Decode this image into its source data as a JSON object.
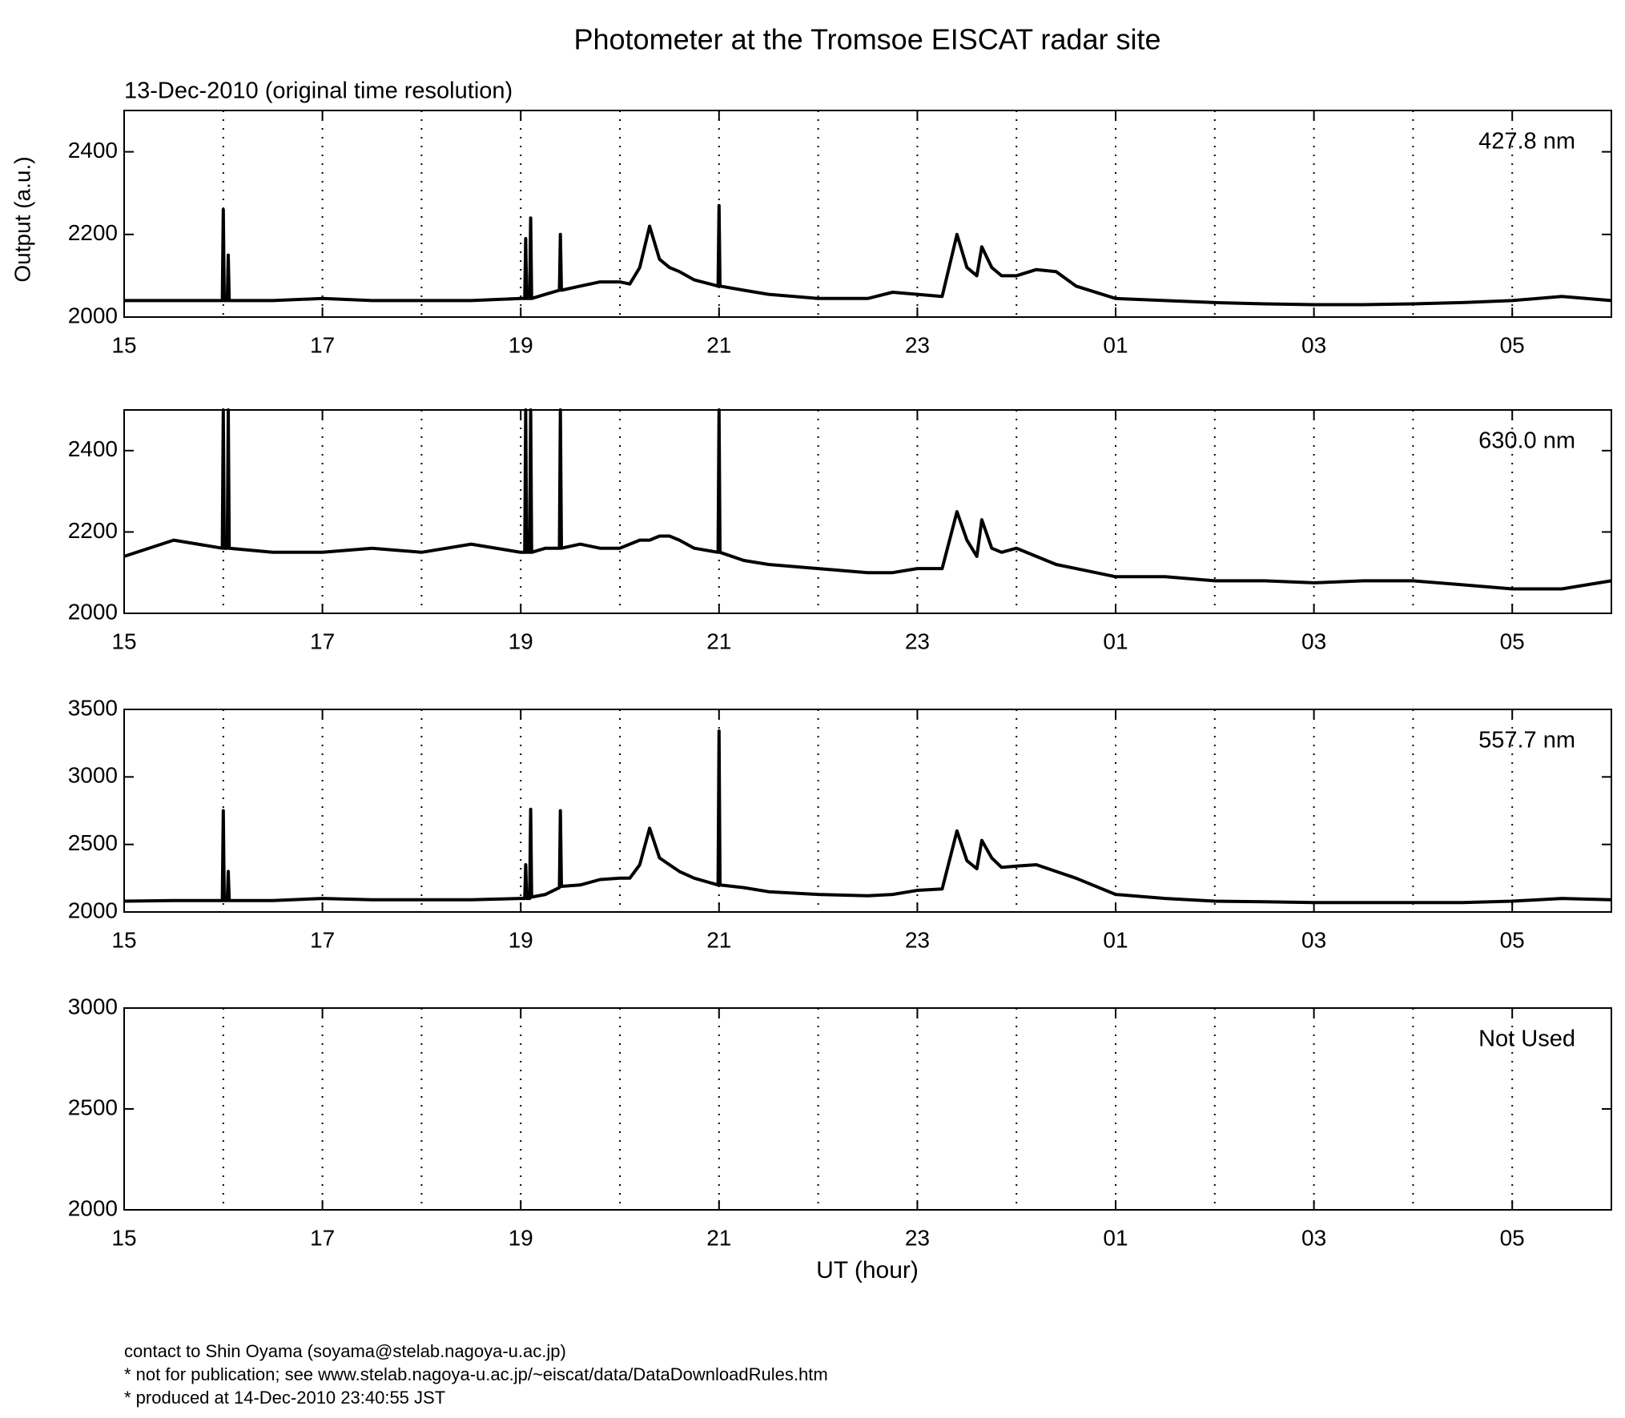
{
  "title": "Photometer at the Tromsoe EISCAT radar site",
  "subtitle": "13-Dec-2010 (original time resolution)",
  "y_label": "Output (a.u.)",
  "x_label": "UT (hour)",
  "footer": [
    "contact to Shin Oyama (soyama@stelab.nagoya-u.ac.jp)",
    "* not for publication; see www.stelab.nagoya-u.ac.jp/~eiscat/data/DataDownloadRules.htm",
    "* produced at 14-Dec-2010 23:40:55 JST"
  ],
  "chart_data": [
    {
      "type": "line",
      "label": "427.8 nm",
      "color": "#000000",
      "grid": true,
      "xlim": [
        15,
        30
      ],
      "xticks": [
        15,
        17,
        19,
        21,
        23,
        {
          "value": 25,
          "label": "01"
        },
        {
          "value": 27,
          "label": "03"
        },
        {
          "value": 29,
          "label": "05"
        }
      ],
      "x_minor_grid": [
        16,
        18,
        20,
        22,
        24,
        26,
        28
      ],
      "ylim": [
        2000,
        2500
      ],
      "yticks": [
        2000,
        2200,
        2400
      ],
      "x": [
        15,
        15.5,
        15.99,
        16,
        16.01,
        16.04,
        16.05,
        16.06,
        16.5,
        17,
        17.5,
        18,
        18.5,
        19,
        19.04,
        19.05,
        19.06,
        19.09,
        19.1,
        19.11,
        19.25,
        19.39,
        19.4,
        19.41,
        19.6,
        19.8,
        20,
        20.1,
        20.2,
        20.3,
        20.4,
        20.5,
        20.6,
        20.75,
        20.99,
        21,
        21.01,
        21.25,
        21.5,
        22,
        22.5,
        22.75,
        23,
        23.25,
        23.4,
        23.5,
        23.6,
        23.65,
        23.75,
        23.85,
        24,
        24.2,
        24.4,
        24.6,
        25,
        25.5,
        26,
        26.5,
        27,
        27.5,
        28,
        28.5,
        29,
        29.5,
        30
      ],
      "values": [
        2040,
        2040,
        2040,
        2260,
        2040,
        2040,
        2150,
        2040,
        2040,
        2045,
        2040,
        2040,
        2040,
        2045,
        2045,
        2190,
        2045,
        2045,
        2240,
        2045,
        2055,
        2065,
        2200,
        2065,
        2075,
        2085,
        2085,
        2080,
        2120,
        2220,
        2140,
        2120,
        2110,
        2090,
        2075,
        2270,
        2075,
        2065,
        2055,
        2045,
        2045,
        2060,
        2055,
        2050,
        2200,
        2120,
        2100,
        2170,
        2120,
        2100,
        2100,
        2115,
        2110,
        2075,
        2045,
        2040,
        2035,
        2032,
        2030,
        2030,
        2032,
        2035,
        2040,
        2050,
        2040
      ]
    },
    {
      "type": "line",
      "label": "630.0 nm",
      "color": "#000000",
      "grid": true,
      "xlim": [
        15,
        30
      ],
      "xticks": [
        15,
        17,
        19,
        21,
        23,
        {
          "value": 25,
          "label": "01"
        },
        {
          "value": 27,
          "label": "03"
        },
        {
          "value": 29,
          "label": "05"
        }
      ],
      "x_minor_grid": [
        16,
        18,
        20,
        22,
        24,
        26,
        28
      ],
      "ylim": [
        2000,
        2500
      ],
      "yticks": [
        2000,
        2200,
        2400
      ],
      "x": [
        15,
        15.5,
        15.99,
        16,
        16.01,
        16.04,
        16.05,
        16.06,
        16.5,
        17,
        17.5,
        18,
        18.5,
        19,
        19.04,
        19.05,
        19.06,
        19.09,
        19.1,
        19.11,
        19.25,
        19.39,
        19.4,
        19.41,
        19.6,
        19.8,
        20,
        20.1,
        20.2,
        20.3,
        20.4,
        20.5,
        20.6,
        20.75,
        20.99,
        21,
        21.01,
        21.25,
        21.5,
        22,
        22.5,
        22.75,
        23,
        23.25,
        23.4,
        23.5,
        23.6,
        23.65,
        23.75,
        23.85,
        24,
        24.2,
        24.4,
        24.6,
        25,
        25.5,
        26,
        26.5,
        27,
        27.5,
        28,
        28.5,
        29,
        29.5,
        30
      ],
      "values": [
        2140,
        2180,
        2160,
        2500,
        2160,
        2160,
        2500,
        2160,
        2150,
        2150,
        2160,
        2150,
        2170,
        2150,
        2150,
        2500,
        2150,
        2150,
        2500,
        2150,
        2160,
        2160,
        2500,
        2160,
        2170,
        2160,
        2160,
        2170,
        2180,
        2180,
        2190,
        2190,
        2180,
        2160,
        2150,
        2500,
        2150,
        2130,
        2120,
        2110,
        2100,
        2100,
        2110,
        2110,
        2250,
        2180,
        2140,
        2230,
        2160,
        2150,
        2160,
        2140,
        2120,
        2110,
        2090,
        2090,
        2080,
        2080,
        2075,
        2080,
        2080,
        2070,
        2060,
        2060,
        2080
      ]
    },
    {
      "type": "line",
      "label": "557.7 nm",
      "color": "#000000",
      "grid": true,
      "xlim": [
        15,
        30
      ],
      "xticks": [
        15,
        17,
        19,
        21,
        23,
        {
          "value": 25,
          "label": "01"
        },
        {
          "value": 27,
          "label": "03"
        },
        {
          "value": 29,
          "label": "05"
        }
      ],
      "x_minor_grid": [
        16,
        18,
        20,
        22,
        24,
        26,
        28
      ],
      "ylim": [
        2000,
        3500
      ],
      "yticks": [
        2000,
        2500,
        3000,
        3500
      ],
      "x": [
        15,
        15.5,
        15.99,
        16,
        16.01,
        16.04,
        16.05,
        16.06,
        16.5,
        17,
        17.5,
        18,
        18.5,
        19,
        19.04,
        19.05,
        19.06,
        19.09,
        19.1,
        19.11,
        19.25,
        19.39,
        19.4,
        19.41,
        19.6,
        19.8,
        20,
        20.1,
        20.2,
        20.3,
        20.4,
        20.5,
        20.6,
        20.75,
        20.99,
        21,
        21.01,
        21.25,
        21.5,
        22,
        22.5,
        22.75,
        23,
        23.25,
        23.4,
        23.5,
        23.6,
        23.65,
        23.75,
        23.85,
        24,
        24.2,
        24.4,
        24.6,
        25,
        25.5,
        26,
        26.5,
        27,
        27.5,
        28,
        28.5,
        29,
        29.5,
        30
      ],
      "values": [
        2080,
        2085,
        2085,
        2750,
        2085,
        2085,
        2300,
        2085,
        2085,
        2100,
        2090,
        2090,
        2090,
        2100,
        2100,
        2350,
        2100,
        2100,
        2760,
        2110,
        2130,
        2180,
        2750,
        2190,
        2200,
        2240,
        2250,
        2250,
        2350,
        2620,
        2400,
        2350,
        2300,
        2250,
        2200,
        3340,
        2200,
        2180,
        2150,
        2130,
        2120,
        2130,
        2160,
        2170,
        2600,
        2380,
        2320,
        2530,
        2400,
        2330,
        2340,
        2350,
        2300,
        2250,
        2130,
        2100,
        2080,
        2075,
        2070,
        2070,
        2070,
        2070,
        2080,
        2100,
        2090
      ]
    },
    {
      "type": "line",
      "label": "Not Used",
      "color": "#000000",
      "grid": true,
      "xlim": [
        15,
        30
      ],
      "xticks": [
        15,
        17,
        19,
        21,
        23,
        {
          "value": 25,
          "label": "01"
        },
        {
          "value": 27,
          "label": "03"
        },
        {
          "value": 29,
          "label": "05"
        }
      ],
      "x_minor_grid": [
        16,
        18,
        20,
        22,
        24,
        26,
        28
      ],
      "ylim": [
        2000,
        3000
      ],
      "yticks": [
        2000,
        2500,
        3000
      ],
      "x": [],
      "values": []
    }
  ]
}
